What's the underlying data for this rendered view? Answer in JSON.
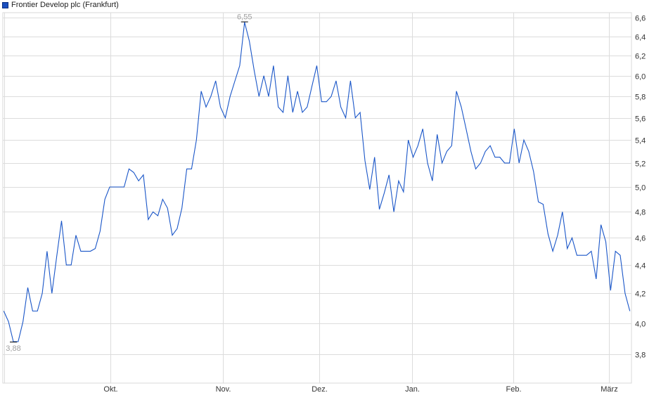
{
  "chart_data": {
    "type": "line",
    "title": "",
    "legend": {
      "label": "Frontier Develop plc (Frankfurt)",
      "placement": "top-left"
    },
    "series": [
      {
        "name": "Frontier Develop plc (Frankfurt)",
        "color": "#1a56c8",
        "values": [
          4.08,
          4.01,
          3.88,
          3.88,
          4.01,
          4.24,
          4.08,
          4.08,
          4.2,
          4.5,
          4.2,
          4.46,
          4.73,
          4.4,
          4.4,
          4.62,
          4.5,
          4.5,
          4.5,
          4.52,
          4.65,
          4.9,
          5.0,
          5.0,
          5.0,
          5.0,
          5.15,
          5.12,
          5.05,
          5.1,
          4.74,
          4.8,
          4.77,
          4.9,
          4.83,
          4.62,
          4.67,
          4.83,
          5.15,
          5.15,
          5.4,
          5.85,
          5.7,
          5.8,
          5.95,
          5.7,
          5.6,
          5.8,
          5.95,
          6.1,
          6.55,
          6.35,
          6.05,
          5.8,
          6.0,
          5.8,
          6.1,
          5.7,
          5.65,
          6.0,
          5.65,
          5.85,
          5.65,
          5.7,
          5.9,
          6.1,
          5.75,
          5.75,
          5.8,
          5.95,
          5.7,
          5.6,
          5.95,
          5.6,
          5.65,
          5.22,
          4.98,
          5.25,
          4.82,
          4.95,
          5.1,
          4.8,
          5.05,
          4.96,
          5.4,
          5.25,
          5.35,
          5.5,
          5.2,
          5.05,
          5.45,
          5.2,
          5.3,
          5.35,
          5.85,
          5.7,
          5.5,
          5.3,
          5.15,
          5.2,
          5.3,
          5.35,
          5.25,
          5.25,
          5.2,
          5.2,
          5.5,
          5.2,
          5.4,
          5.3,
          5.13,
          4.88,
          4.86,
          4.63,
          4.5,
          4.62,
          4.8,
          4.52,
          4.6,
          4.47,
          4.47,
          4.47,
          4.5,
          4.3,
          4.7,
          4.57,
          4.22,
          4.5,
          4.47,
          4.2,
          4.08
        ]
      }
    ],
    "x_ticks": [
      "Okt.",
      "Nov.",
      "Dez.",
      "Jan.",
      "Feb.",
      "März"
    ],
    "y_ticks": [
      "3,8",
      "4,0",
      "4,2",
      "4,4",
      "4,6",
      "4,8",
      "5,0",
      "5,2",
      "5,4",
      "5,6",
      "5,8",
      "6,0",
      "6,2",
      "6,4",
      "6,6"
    ],
    "y_tick_values": [
      3.8,
      4.0,
      4.2,
      4.4,
      4.6,
      4.8,
      5.0,
      5.2,
      5.4,
      5.6,
      5.8,
      6.0,
      6.2,
      6.4,
      6.6
    ],
    "y_scale": "log",
    "y_axis_side": "right",
    "ylim": [
      3.7,
      6.65
    ],
    "grid": true,
    "annotations": {
      "max_label": "6,55",
      "min_label": "3,88"
    }
  }
}
